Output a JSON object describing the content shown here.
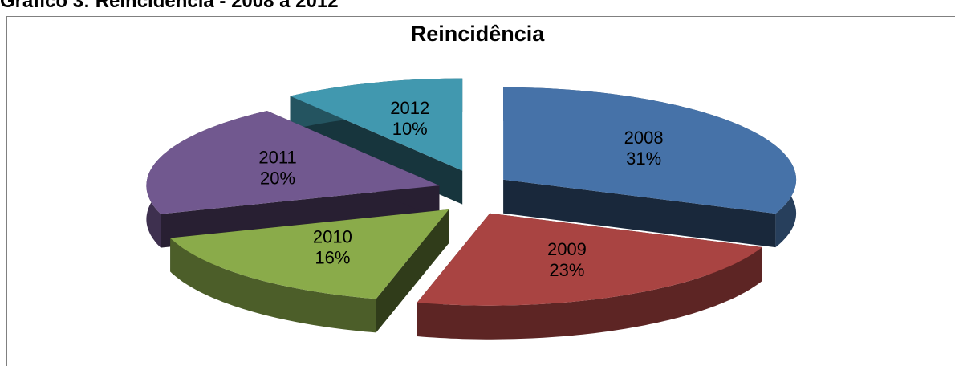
{
  "chart_data": {
    "type": "pie3d",
    "caption": "Gráfico 3: Reincidência - 2008 a 2012",
    "title": "Reincidência",
    "categories": [
      "2008",
      "2009",
      "2010",
      "2011",
      "2012"
    ],
    "values": [
      31,
      23,
      16,
      20,
      10
    ],
    "value_labels": [
      "31%",
      "23%",
      "16%",
      "20%",
      "10%"
    ],
    "colors": [
      "#4672a8",
      "#a94442",
      "#8aab4a",
      "#71588f",
      "#4198af"
    ]
  }
}
